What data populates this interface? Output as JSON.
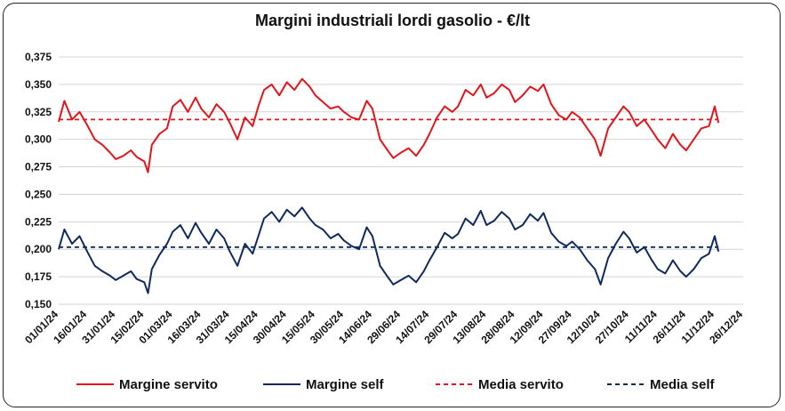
{
  "chart_data": {
    "type": "line",
    "title": "Margini industriali lordi gasolio - €/lt",
    "xlabel": "",
    "ylabel": "",
    "ylim": [
      0.15,
      0.375
    ],
    "y_ticks": [
      "0,150",
      "0,175",
      "0,200",
      "0,225",
      "0,250",
      "0,275",
      "0,300",
      "0,325",
      "0,350",
      "0,375"
    ],
    "x_ticks": [
      "01/01/24",
      "16/01/24",
      "31/01/24",
      "15/02/24",
      "01/03/24",
      "16/03/24",
      "31/03/24",
      "15/04/24",
      "30/04/24",
      "15/05/24",
      "30/05/24",
      "14/06/24",
      "29/06/24",
      "14/07/24",
      "29/07/24",
      "13/08/24",
      "28/08/24",
      "12/09/24",
      "27/09/24",
      "12/10/24",
      "27/10/24",
      "11/11/24",
      "26/11/24",
      "11/12/24",
      "26/12/24"
    ],
    "grid": "horizontal",
    "legend_position": "bottom",
    "series": [
      {
        "name": "Margine servito",
        "color": "#e3141b",
        "style": "solid",
        "x": [
          "01/01/24",
          "04/01/24",
          "08/01/24",
          "12/01/24",
          "16/01/24",
          "20/01/24",
          "24/01/24",
          "28/01/24",
          "31/01/24",
          "04/02/24",
          "08/02/24",
          "11/02/24",
          "15/02/24",
          "17/02/24",
          "19/02/24",
          "23/02/24",
          "27/02/24",
          "01/03/24",
          "05/03/24",
          "09/03/24",
          "13/03/24",
          "16/03/24",
          "20/03/24",
          "24/03/24",
          "28/03/24",
          "31/03/24",
          "04/04/24",
          "08/04/24",
          "12/04/24",
          "15/04/24",
          "18/04/24",
          "22/04/24",
          "26/04/24",
          "30/04/24",
          "04/05/24",
          "08/05/24",
          "12/05/24",
          "15/05/24",
          "19/05/24",
          "23/05/24",
          "27/05/24",
          "30/05/24",
          "03/06/24",
          "07/06/24",
          "11/06/24",
          "14/06/24",
          "18/06/24",
          "22/06/24",
          "25/06/24",
          "29/06/24",
          "03/07/24",
          "07/07/24",
          "11/07/24",
          "14/07/24",
          "18/07/24",
          "22/07/24",
          "26/07/24",
          "29/07/24",
          "02/08/24",
          "06/08/24",
          "10/08/24",
          "13/08/24",
          "17/08/24",
          "21/08/24",
          "25/08/24",
          "28/08/24",
          "01/09/24",
          "05/09/24",
          "09/09/24",
          "12/09/24",
          "16/09/24",
          "20/09/24",
          "24/09/24",
          "27/09/24",
          "01/10/24",
          "05/10/24",
          "09/10/24",
          "12/10/24",
          "16/10/24",
          "20/10/24",
          "24/10/24",
          "27/10/24",
          "31/10/24",
          "04/11/24",
          "08/11/24",
          "11/11/24",
          "15/11/24",
          "19/11/24",
          "23/11/24",
          "26/11/24",
          "30/11/24",
          "04/12/24",
          "08/12/24",
          "11/12/24",
          "13/12/24"
        ],
        "values": [
          0.316,
          0.335,
          0.318,
          0.325,
          0.313,
          0.3,
          0.295,
          0.288,
          0.282,
          0.285,
          0.29,
          0.284,
          0.28,
          0.27,
          0.295,
          0.305,
          0.31,
          0.33,
          0.336,
          0.325,
          0.338,
          0.328,
          0.32,
          0.332,
          0.325,
          0.315,
          0.3,
          0.32,
          0.312,
          0.33,
          0.345,
          0.35,
          0.34,
          0.352,
          0.345,
          0.355,
          0.348,
          0.34,
          0.334,
          0.328,
          0.33,
          0.325,
          0.32,
          0.318,
          0.335,
          0.328,
          0.3,
          0.29,
          0.283,
          0.288,
          0.292,
          0.285,
          0.295,
          0.305,
          0.32,
          0.33,
          0.325,
          0.33,
          0.345,
          0.34,
          0.35,
          0.338,
          0.342,
          0.35,
          0.345,
          0.334,
          0.34,
          0.348,
          0.344,
          0.35,
          0.332,
          0.322,
          0.318,
          0.325,
          0.32,
          0.31,
          0.3,
          0.285,
          0.31,
          0.32,
          0.33,
          0.325,
          0.312,
          0.318,
          0.308,
          0.3,
          0.292,
          0.305,
          0.295,
          0.29,
          0.3,
          0.31,
          0.312,
          0.33,
          0.315
        ]
      },
      {
        "name": "Margine self",
        "color": "#102a5c",
        "style": "solid",
        "x": [
          "01/01/24",
          "04/01/24",
          "08/01/24",
          "12/01/24",
          "16/01/24",
          "20/01/24",
          "24/01/24",
          "28/01/24",
          "31/01/24",
          "04/02/24",
          "08/02/24",
          "11/02/24",
          "15/02/24",
          "17/02/24",
          "19/02/24",
          "23/02/24",
          "27/02/24",
          "01/03/24",
          "05/03/24",
          "09/03/24",
          "13/03/24",
          "16/03/24",
          "20/03/24",
          "24/03/24",
          "28/03/24",
          "31/03/24",
          "04/04/24",
          "08/04/24",
          "12/04/24",
          "15/04/24",
          "18/04/24",
          "22/04/24",
          "26/04/24",
          "30/04/24",
          "04/05/24",
          "08/05/24",
          "12/05/24",
          "15/05/24",
          "19/05/24",
          "23/05/24",
          "27/05/24",
          "30/05/24",
          "03/06/24",
          "07/06/24",
          "11/06/24",
          "14/06/24",
          "18/06/24",
          "22/06/24",
          "25/06/24",
          "29/06/24",
          "03/07/24",
          "07/07/24",
          "11/07/24",
          "14/07/24",
          "18/07/24",
          "22/07/24",
          "26/07/24",
          "29/07/24",
          "02/08/24",
          "06/08/24",
          "10/08/24",
          "13/08/24",
          "17/08/24",
          "21/08/24",
          "25/08/24",
          "28/08/24",
          "01/09/24",
          "05/09/24",
          "09/09/24",
          "12/09/24",
          "16/09/24",
          "20/09/24",
          "24/09/24",
          "27/09/24",
          "01/10/24",
          "05/10/24",
          "09/10/24",
          "12/10/24",
          "16/10/24",
          "20/10/24",
          "24/10/24",
          "27/10/24",
          "31/10/24",
          "04/11/24",
          "08/11/24",
          "11/11/24",
          "15/11/24",
          "19/11/24",
          "23/11/24",
          "26/11/24",
          "30/11/24",
          "04/12/24",
          "08/12/24",
          "11/12/24",
          "13/12/24"
        ],
        "values": [
          0.2,
          0.218,
          0.205,
          0.212,
          0.198,
          0.185,
          0.18,
          0.176,
          0.172,
          0.176,
          0.18,
          0.173,
          0.17,
          0.16,
          0.182,
          0.195,
          0.205,
          0.216,
          0.222,
          0.21,
          0.224,
          0.215,
          0.205,
          0.218,
          0.21,
          0.198,
          0.185,
          0.205,
          0.196,
          0.212,
          0.228,
          0.234,
          0.225,
          0.236,
          0.23,
          0.238,
          0.228,
          0.222,
          0.218,
          0.21,
          0.214,
          0.208,
          0.203,
          0.2,
          0.22,
          0.212,
          0.185,
          0.175,
          0.168,
          0.172,
          0.176,
          0.17,
          0.18,
          0.19,
          0.202,
          0.215,
          0.21,
          0.214,
          0.228,
          0.222,
          0.235,
          0.222,
          0.226,
          0.234,
          0.228,
          0.218,
          0.222,
          0.232,
          0.226,
          0.233,
          0.215,
          0.207,
          0.203,
          0.207,
          0.2,
          0.19,
          0.182,
          0.168,
          0.192,
          0.205,
          0.216,
          0.21,
          0.197,
          0.202,
          0.19,
          0.182,
          0.178,
          0.19,
          0.18,
          0.175,
          0.182,
          0.192,
          0.196,
          0.212,
          0.198
        ]
      },
      {
        "name": "Media servito",
        "color": "#e3141b",
        "style": "dashed",
        "x": [
          "01/01/24",
          "13/12/24"
        ],
        "values": [
          0.318,
          0.318
        ]
      },
      {
        "name": "Media self",
        "color": "#102a5c",
        "style": "dashed",
        "x": [
          "01/01/24",
          "13/12/24"
        ],
        "values": [
          0.202,
          0.202
        ]
      }
    ]
  }
}
